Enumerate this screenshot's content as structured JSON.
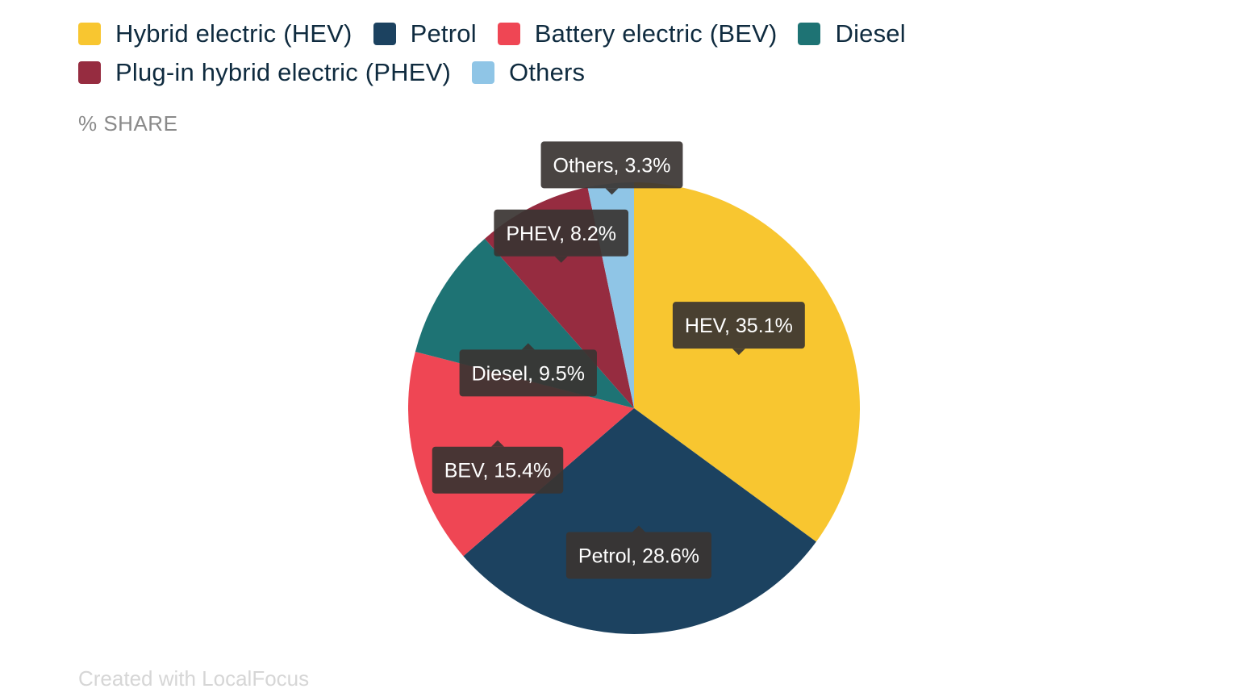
{
  "legend": {
    "items": [
      {
        "label": "Hybrid electric (HEV)",
        "color": "#f8c630"
      },
      {
        "label": "Petrol",
        "color": "#1c4260"
      },
      {
        "label": "Battery electric (BEV)",
        "color": "#ef4654"
      },
      {
        "label": "Diesel",
        "color": "#1e7374"
      },
      {
        "label": "Plug-in hybrid electric (PHEV)",
        "color": "#962c40"
      },
      {
        "label": "Others",
        "color": "#8fc5e6"
      }
    ]
  },
  "unit_label": "% SHARE",
  "footer": "Created with LocalFocus",
  "chart_data": {
    "type": "pie",
    "slices": [
      {
        "name": "HEV",
        "value": 35.1,
        "color": "#f8c630",
        "label": "HEV, 35.1%"
      },
      {
        "name": "Petrol",
        "value": 28.6,
        "color": "#1c4260",
        "label": "Petrol, 28.6%"
      },
      {
        "name": "BEV",
        "value": 15.4,
        "color": "#ef4654",
        "label": "BEV, 15.4%"
      },
      {
        "name": "Diesel",
        "value": 9.5,
        "color": "#1e7374",
        "label": "Diesel, 9.5%"
      },
      {
        "name": "PHEV",
        "value": 8.2,
        "color": "#962c40",
        "label": "PHEV, 8.2%"
      },
      {
        "name": "Others",
        "value": 3.3,
        "color": "#8fc5e6",
        "label": "Others, 3.3%"
      }
    ],
    "ylabel": "% SHARE",
    "legend_position": "top-left"
  }
}
